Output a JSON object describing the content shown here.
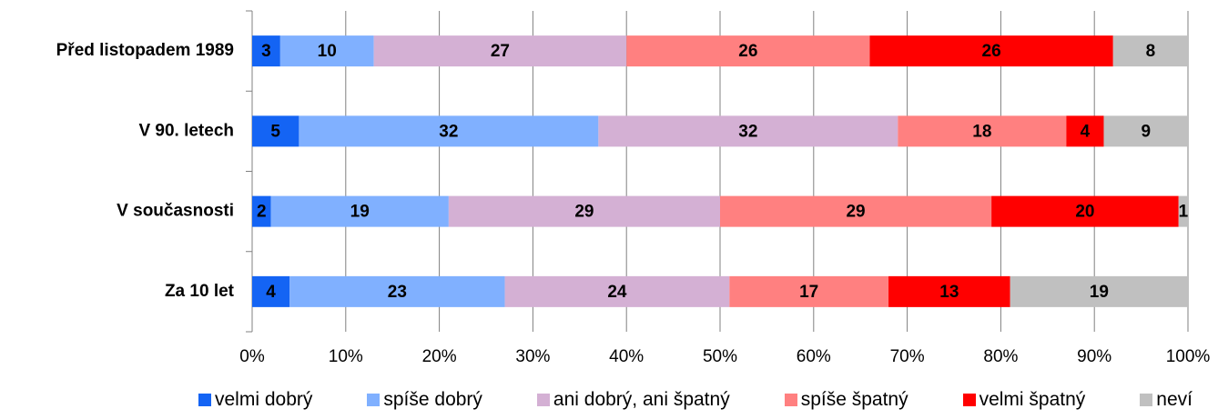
{
  "chart_data": {
    "type": "stacked-bar-horizontal",
    "categories": [
      "Před listopadem 1989",
      "V 90. letech",
      "V současnosti",
      "Za 10 let"
    ],
    "series": [
      {
        "name": "velmi dobrý",
        "color": "#1464f4",
        "values": [
          3,
          5,
          2,
          4
        ]
      },
      {
        "name": "spíše dobrý",
        "color": "#80b0ff",
        "values": [
          10,
          32,
          19,
          23
        ]
      },
      {
        "name": "ani dobrý, ani špatný",
        "color": "#d4b0d4",
        "values": [
          27,
          32,
          29,
          24
        ]
      },
      {
        "name": "spíše špatný",
        "color": "#ff8080",
        "values": [
          26,
          18,
          29,
          17
        ]
      },
      {
        "name": "velmi špatný",
        "color": "#ff0000",
        "values": [
          26,
          4,
          20,
          13
        ]
      },
      {
        "name": "neví",
        "color": "#c0c0c0",
        "values": [
          8,
          9,
          1,
          19
        ]
      }
    ],
    "xlim": [
      0,
      100
    ],
    "xticks": [
      {
        "value": 0,
        "label": "0%"
      },
      {
        "value": 10,
        "label": "10%"
      },
      {
        "value": 20,
        "label": "20%"
      },
      {
        "value": 30,
        "label": "30%"
      },
      {
        "value": 40,
        "label": "40%"
      },
      {
        "value": 50,
        "label": "50%"
      },
      {
        "value": 60,
        "label": "60%"
      },
      {
        "value": 70,
        "label": "70%"
      },
      {
        "value": 80,
        "label": "80%"
      },
      {
        "value": 90,
        "label": "90%"
      },
      {
        "value": 100,
        "label": "100%"
      }
    ],
    "grid": true,
    "legend": "bottom"
  }
}
